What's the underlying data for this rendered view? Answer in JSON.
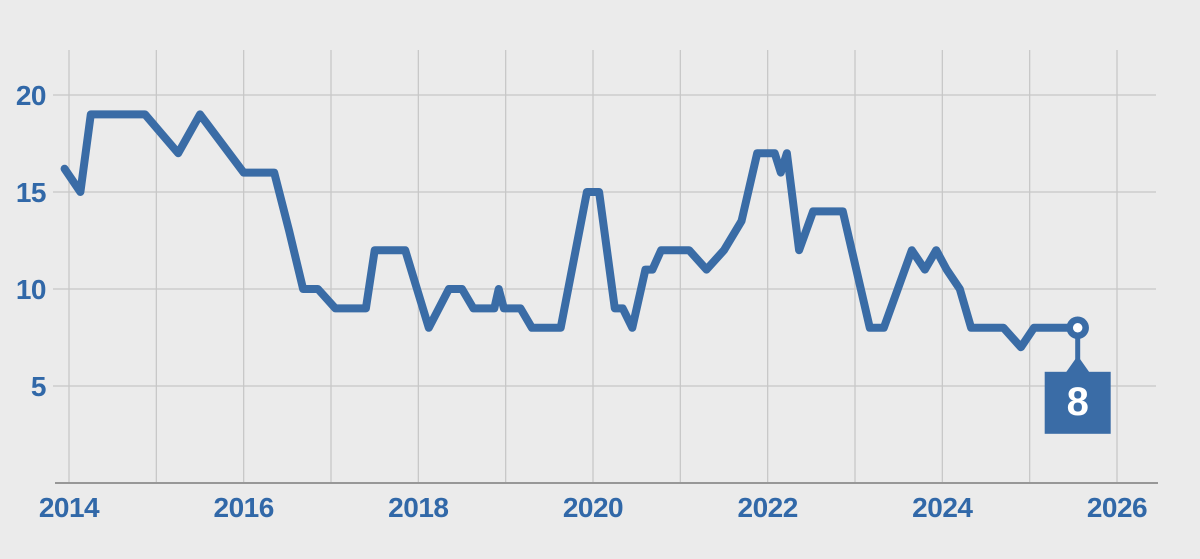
{
  "chart_data": {
    "type": "line",
    "title": "",
    "xlabel": "",
    "ylabel": "",
    "grid": "on",
    "legend": "none",
    "x_axis": {
      "tick_labels": [
        "2014",
        "2016",
        "2018",
        "2020",
        "2022",
        "2024",
        "2026"
      ],
      "tick_years": [
        2014,
        2016,
        2018,
        2020,
        2022,
        2024,
        2026
      ],
      "gridline_years": [
        2014,
        2015,
        2016,
        2017,
        2018,
        2019,
        2020,
        2021,
        2022,
        2023,
        2024,
        2025,
        2026
      ],
      "range": [
        2013.8,
        2026.45
      ]
    },
    "y_axis": {
      "ticks": [
        5,
        10,
        15,
        20
      ],
      "tick_labels": [
        "5",
        "10",
        "15",
        "20"
      ],
      "range": [
        0,
        22.3
      ]
    },
    "points": [
      [
        2013.95,
        16.2
      ],
      [
        2014.13,
        15
      ],
      [
        2014.25,
        19
      ],
      [
        2014.87,
        19
      ],
      [
        2015.25,
        17
      ],
      [
        2015.5,
        19
      ],
      [
        2016.0,
        16
      ],
      [
        2016.35,
        16
      ],
      [
        2016.52,
        13
      ],
      [
        2016.68,
        10
      ],
      [
        2016.85,
        10
      ],
      [
        2017.05,
        9
      ],
      [
        2017.4,
        9
      ],
      [
        2017.5,
        12
      ],
      [
        2017.85,
        12
      ],
      [
        2018.12,
        8
      ],
      [
        2018.35,
        10
      ],
      [
        2018.5,
        10
      ],
      [
        2018.63,
        9
      ],
      [
        2018.87,
        9
      ],
      [
        2018.92,
        10
      ],
      [
        2018.98,
        9
      ],
      [
        2019.17,
        9
      ],
      [
        2019.3,
        8
      ],
      [
        2019.63,
        8
      ],
      [
        2019.93,
        15
      ],
      [
        2020.07,
        15
      ],
      [
        2020.25,
        9
      ],
      [
        2020.34,
        9
      ],
      [
        2020.45,
        8
      ],
      [
        2020.6,
        11
      ],
      [
        2020.68,
        11
      ],
      [
        2020.78,
        12
      ],
      [
        2021.1,
        12
      ],
      [
        2021.3,
        11
      ],
      [
        2021.5,
        12
      ],
      [
        2021.7,
        13.5
      ],
      [
        2021.88,
        17
      ],
      [
        2022.08,
        17
      ],
      [
        2022.15,
        16
      ],
      [
        2022.22,
        17
      ],
      [
        2022.36,
        12
      ],
      [
        2022.52,
        14
      ],
      [
        2022.86,
        14
      ],
      [
        2023.17,
        8
      ],
      [
        2023.33,
        8
      ],
      [
        2023.65,
        12
      ],
      [
        2023.8,
        11
      ],
      [
        2023.93,
        12
      ],
      [
        2024.05,
        11
      ],
      [
        2024.2,
        10
      ],
      [
        2024.33,
        8
      ],
      [
        2024.7,
        8
      ],
      [
        2024.9,
        7
      ],
      [
        2025.05,
        8
      ],
      [
        2025.55,
        8
      ]
    ],
    "end_marker": {
      "year": 2025.55,
      "value": 8
    },
    "end_label": {
      "text": "8"
    },
    "colors": {
      "background": "#ebebeb",
      "grid": "#c7c7c7",
      "axis": "#979797",
      "line": "#3a6ca6",
      "tick_text": "#3168a8",
      "callout_bg": "#3a6ca6",
      "callout_text": "#ffffff",
      "marker_fill": "#ffffff"
    }
  }
}
